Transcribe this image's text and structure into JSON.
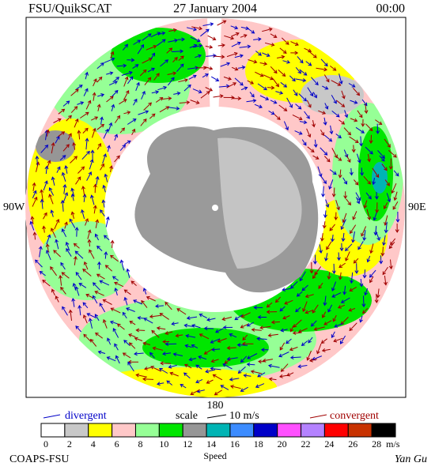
{
  "header": {
    "left": "FSU/QuikSCAT",
    "date": "27 January 2004",
    "time": "00:00"
  },
  "map": {
    "labels": {
      "west": "90W",
      "east": "90E",
      "south": "180"
    }
  },
  "legend": {
    "divergent": "divergent",
    "scale": "scale",
    "scale_value": "10 m/s",
    "convergent": "convergent"
  },
  "colorbar": {
    "ticks": [
      0,
      2,
      4,
      6,
      8,
      10,
      12,
      14,
      16,
      18,
      20,
      22,
      24,
      26,
      28
    ],
    "unit": "m/s",
    "title": "Speed",
    "colors": [
      "#ffffff",
      "#c8c8c8",
      "#ffff00",
      "#ffc8c8",
      "#96ff96",
      "#00e600",
      "#969696",
      "#00b4b4",
      "#3c8cff",
      "#0000c8",
      "#ff50ff",
      "#b482ff",
      "#ff0000",
      "#c83200",
      "#000000"
    ]
  },
  "footer": {
    "left": "COAPS-FSU",
    "right": "Yan Gu"
  }
}
